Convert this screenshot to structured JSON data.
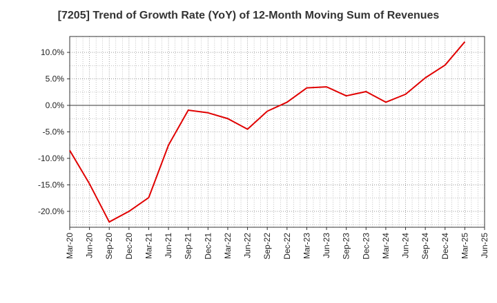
{
  "chart_data": {
    "type": "line",
    "title": "[7205]  Trend of Growth Rate (YoY) of 12-Month Moving Sum of Revenues",
    "xlabel": "",
    "ylabel": "",
    "x_ticks": [
      "Mar-20",
      "Jun-20",
      "Sep-20",
      "Dec-20",
      "Mar-21",
      "Jun-21",
      "Sep-21",
      "Dec-21",
      "Mar-22",
      "Jun-22",
      "Sep-22",
      "Dec-22",
      "Mar-23",
      "Jun-23",
      "Sep-23",
      "Dec-23",
      "Mar-24",
      "Jun-24",
      "Sep-24",
      "Dec-24",
      "Mar-25",
      "Jun-25"
    ],
    "y_ticks": [
      "10.0%",
      "5.0%",
      "0.0%",
      "-5.0%",
      "-10.0%",
      "-15.0%",
      "-20.0%"
    ],
    "y_tick_values": [
      10,
      5,
      0,
      -5,
      -10,
      -15,
      -20
    ],
    "ylim": [
      -23,
      13
    ],
    "grid": true,
    "line_color": "#e00000",
    "series": [
      {
        "x": [
          "Mar-20",
          "Jun-20",
          "Sep-20",
          "Dec-20",
          "Mar-21",
          "Jun-21",
          "Sep-21",
          "Dec-21",
          "Mar-22",
          "Jun-22",
          "Sep-22",
          "Dec-22",
          "Mar-23",
          "Jun-23",
          "Sep-23",
          "Dec-23",
          "Mar-24",
          "Jun-24",
          "Sep-24",
          "Dec-24",
          "Mar-25"
        ],
        "values": [
          -8.5,
          -14.8,
          -22.0,
          -20.0,
          -17.4,
          -7.5,
          -0.9,
          -1.4,
          -2.5,
          -4.5,
          -1.1,
          0.6,
          3.3,
          3.5,
          1.8,
          2.6,
          0.6,
          2.1,
          5.2,
          7.6,
          12.0
        ]
      }
    ]
  }
}
